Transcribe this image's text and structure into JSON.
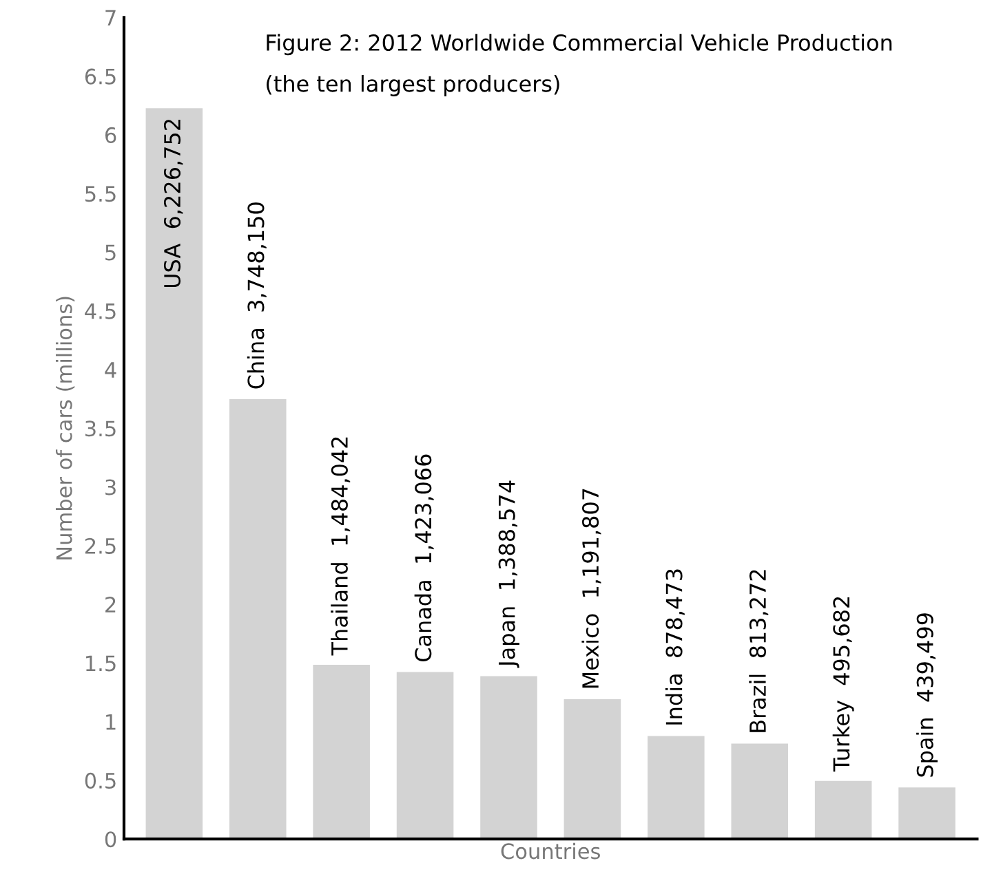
{
  "chart_data": {
    "type": "bar",
    "title": "Figure 2: 2012 Worldwide Commercial Vehicle Production",
    "subtitle": "(the ten largest producers)",
    "xlabel": "Countries",
    "ylabel": "Number of cars (millions)",
    "categories": [
      "USA  6,226,752",
      "China  3,748,150",
      "Thailand  1,484,042",
      "Canada  1,423,066",
      "Japan  1,388,574",
      "Mexico  1,191,807",
      "India  878,473",
      "Brazil  813,272",
      "Turkey  495,682",
      "Spain  439,499"
    ],
    "values": [
      6.226752,
      3.74815,
      1.484042,
      1.423066,
      1.388574,
      1.191807,
      0.878473,
      0.813272,
      0.495682,
      0.439499
    ],
    "color": "#d3d3d3",
    "ylim": [
      0,
      7
    ],
    "yticks": [
      0,
      0.5,
      1,
      1.5,
      2,
      2.5,
      3,
      3.5,
      4,
      4.5,
      5,
      5.5,
      6,
      6.5,
      7
    ],
    "tick_labels": "y",
    "grid": false,
    "legend": false
  }
}
